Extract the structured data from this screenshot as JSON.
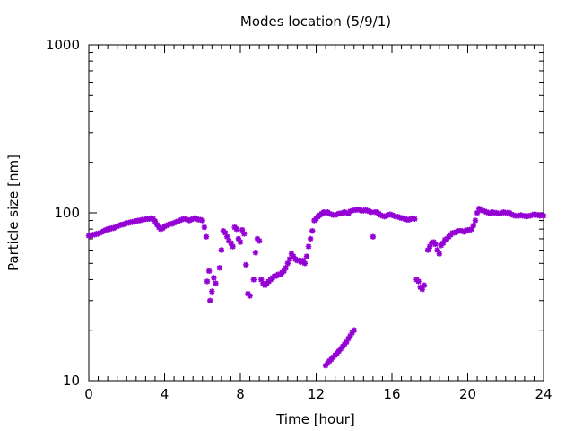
{
  "chart_data": {
    "type": "scatter",
    "title": "Modes location (5/9/1)",
    "xlabel": "Time [hour]",
    "ylabel": "Particle size [nm]",
    "xlim": [
      0,
      24
    ],
    "ylim": [
      10,
      1000
    ],
    "yscale": "log",
    "x_ticks": [
      0,
      4,
      8,
      12,
      16,
      20,
      24
    ],
    "y_ticks": [
      10,
      100,
      1000
    ],
    "x_tick_labels": [
      "0",
      "4",
      "8",
      "12",
      "16",
      "20",
      "24"
    ],
    "y_tick_labels": [
      "10",
      "100",
      "1000"
    ],
    "marker": "star",
    "color": "#9400d3",
    "series": [
      {
        "points": [
          [
            0.0,
            73
          ],
          [
            0.1,
            73
          ],
          [
            0.2,
            74
          ],
          [
            0.3,
            74
          ],
          [
            0.4,
            75
          ],
          [
            0.5,
            75
          ],
          [
            0.6,
            76
          ],
          [
            0.7,
            77
          ],
          [
            0.8,
            78
          ],
          [
            0.9,
            79
          ],
          [
            1.0,
            80
          ],
          [
            1.1,
            80
          ],
          [
            1.2,
            81
          ],
          [
            1.3,
            81
          ],
          [
            1.4,
            82
          ],
          [
            1.5,
            83
          ],
          [
            1.6,
            84
          ],
          [
            1.7,
            85
          ],
          [
            1.8,
            85
          ],
          [
            1.9,
            86
          ],
          [
            2.0,
            87
          ],
          [
            2.1,
            87
          ],
          [
            2.2,
            88
          ],
          [
            2.3,
            88
          ],
          [
            2.4,
            89
          ],
          [
            2.5,
            89
          ],
          [
            2.6,
            90
          ],
          [
            2.7,
            90
          ],
          [
            2.8,
            91
          ],
          [
            2.9,
            91
          ],
          [
            3.0,
            92
          ],
          [
            3.1,
            92
          ],
          [
            3.2,
            92
          ],
          [
            3.3,
            93
          ],
          [
            3.4,
            92
          ],
          [
            3.5,
            89
          ],
          [
            3.6,
            85
          ],
          [
            3.7,
            82
          ],
          [
            3.8,
            80
          ],
          [
            3.9,
            81
          ],
          [
            4.0,
            83
          ],
          [
            4.1,
            84
          ],
          [
            4.2,
            85
          ],
          [
            4.3,
            86
          ],
          [
            4.4,
            86
          ],
          [
            4.5,
            87
          ],
          [
            4.6,
            88
          ],
          [
            4.7,
            89
          ],
          [
            4.8,
            90
          ],
          [
            4.9,
            91
          ],
          [
            5.0,
            92
          ],
          [
            5.1,
            92
          ],
          [
            5.2,
            91
          ],
          [
            5.3,
            90
          ],
          [
            5.4,
            91
          ],
          [
            5.5,
            92
          ],
          [
            5.6,
            93
          ],
          [
            5.7,
            92
          ],
          [
            5.8,
            91
          ],
          [
            5.9,
            91
          ],
          [
            6.0,
            90
          ],
          [
            6.1,
            82
          ],
          [
            6.2,
            72
          ],
          [
            6.25,
            39
          ],
          [
            6.35,
            45
          ],
          [
            6.4,
            30
          ],
          [
            6.5,
            34
          ],
          [
            6.6,
            41
          ],
          [
            6.7,
            38
          ],
          [
            6.9,
            47
          ],
          [
            7.0,
            60
          ],
          [
            7.1,
            78
          ],
          [
            7.2,
            76
          ],
          [
            7.3,
            72
          ],
          [
            7.4,
            68
          ],
          [
            7.5,
            66
          ],
          [
            7.6,
            63
          ],
          [
            7.7,
            82
          ],
          [
            7.8,
            80
          ],
          [
            7.9,
            70
          ],
          [
            8.0,
            67
          ],
          [
            8.1,
            79
          ],
          [
            8.2,
            75
          ],
          [
            8.3,
            49
          ],
          [
            8.4,
            33
          ],
          [
            8.5,
            32
          ],
          [
            8.7,
            40
          ],
          [
            8.8,
            58
          ],
          [
            8.9,
            70
          ],
          [
            9.0,
            68
          ],
          [
            9.1,
            40
          ],
          [
            9.2,
            38
          ],
          [
            9.3,
            37
          ],
          [
            9.4,
            38
          ],
          [
            9.5,
            39
          ],
          [
            9.6,
            40
          ],
          [
            9.7,
            41
          ],
          [
            9.8,
            42
          ],
          [
            9.9,
            42
          ],
          [
            10.0,
            43
          ],
          [
            10.1,
            43
          ],
          [
            10.2,
            44
          ],
          [
            10.3,
            45
          ],
          [
            10.4,
            47
          ],
          [
            10.5,
            50
          ],
          [
            10.6,
            53
          ],
          [
            10.7,
            57
          ],
          [
            10.8,
            55
          ],
          [
            10.9,
            53
          ],
          [
            11.0,
            52
          ],
          [
            11.1,
            52
          ],
          [
            11.2,
            51
          ],
          [
            11.3,
            52
          ],
          [
            11.4,
            50
          ],
          [
            11.5,
            55
          ],
          [
            11.6,
            63
          ],
          [
            11.7,
            70
          ],
          [
            11.8,
            78
          ],
          [
            11.9,
            90
          ],
          [
            12.0,
            92
          ],
          [
            12.1,
            95
          ],
          [
            12.2,
            97
          ],
          [
            12.3,
            99
          ],
          [
            12.4,
            101
          ],
          [
            12.5,
            100
          ],
          [
            12.6,
            101
          ],
          [
            12.7,
            99
          ],
          [
            12.8,
            98
          ],
          [
            12.9,
            97
          ],
          [
            13.0,
            97
          ],
          [
            13.1,
            98
          ],
          [
            13.2,
            99
          ],
          [
            13.3,
            99
          ],
          [
            13.4,
            100
          ],
          [
            13.5,
            101
          ],
          [
            13.6,
            100
          ],
          [
            13.7,
            99
          ],
          [
            13.8,
            102
          ],
          [
            13.9,
            103
          ],
          [
            14.0,
            104
          ],
          [
            14.1,
            104
          ],
          [
            14.2,
            105
          ],
          [
            14.3,
            104
          ],
          [
            14.4,
            103
          ],
          [
            14.5,
            103
          ],
          [
            14.6,
            104
          ],
          [
            14.7,
            103
          ],
          [
            14.8,
            102
          ],
          [
            14.9,
            101
          ],
          [
            15.0,
            72
          ],
          [
            15.1,
            101
          ],
          [
            15.2,
            101
          ],
          [
            15.3,
            99
          ],
          [
            15.4,
            97
          ],
          [
            15.5,
            96
          ],
          [
            15.6,
            95
          ],
          [
            15.7,
            96
          ],
          [
            15.8,
            97
          ],
          [
            15.9,
            98
          ],
          [
            16.0,
            97
          ],
          [
            16.1,
            96
          ],
          [
            16.2,
            95
          ],
          [
            16.3,
            95
          ],
          [
            16.4,
            94
          ],
          [
            16.5,
            93
          ],
          [
            16.6,
            93
          ],
          [
            16.7,
            92
          ],
          [
            16.8,
            91
          ],
          [
            16.9,
            91
          ],
          [
            17.0,
            92
          ],
          [
            17.1,
            93
          ],
          [
            17.2,
            92
          ],
          [
            17.3,
            40
          ],
          [
            17.4,
            39
          ],
          [
            17.5,
            36
          ],
          [
            17.6,
            35
          ],
          [
            17.7,
            37
          ],
          [
            17.9,
            60
          ],
          [
            18.0,
            63
          ],
          [
            18.1,
            66
          ],
          [
            18.2,
            67
          ],
          [
            18.3,
            65
          ],
          [
            18.4,
            60
          ],
          [
            18.5,
            57
          ],
          [
            18.6,
            64
          ],
          [
            18.7,
            66
          ],
          [
            18.8,
            69
          ],
          [
            18.9,
            70
          ],
          [
            19.0,
            72
          ],
          [
            19.1,
            74
          ],
          [
            19.2,
            76
          ],
          [
            19.3,
            76
          ],
          [
            19.4,
            77
          ],
          [
            19.5,
            78
          ],
          [
            19.6,
            78
          ],
          [
            19.7,
            78
          ],
          [
            19.8,
            77
          ],
          [
            19.9,
            78
          ],
          [
            20.0,
            79
          ],
          [
            20.1,
            79
          ],
          [
            20.2,
            80
          ],
          [
            20.3,
            84
          ],
          [
            20.4,
            90
          ],
          [
            20.5,
            100
          ],
          [
            20.6,
            106
          ],
          [
            20.7,
            104
          ],
          [
            20.8,
            103
          ],
          [
            20.9,
            102
          ],
          [
            21.0,
            101
          ],
          [
            21.1,
            100
          ],
          [
            21.2,
            99
          ],
          [
            21.3,
            101
          ],
          [
            21.4,
            100
          ],
          [
            21.5,
            100
          ],
          [
            21.6,
            99
          ],
          [
            21.7,
            99
          ],
          [
            21.8,
            100
          ],
          [
            21.9,
            101
          ],
          [
            22.0,
            100
          ],
          [
            22.1,
            100
          ],
          [
            22.2,
            100
          ],
          [
            22.3,
            98
          ],
          [
            22.4,
            97
          ],
          [
            22.5,
            96
          ],
          [
            22.6,
            96
          ],
          [
            22.7,
            96
          ],
          [
            22.8,
            97
          ],
          [
            22.9,
            96
          ],
          [
            23.0,
            96
          ],
          [
            23.1,
            95
          ],
          [
            23.2,
            96
          ],
          [
            23.3,
            96
          ],
          [
            23.4,
            97
          ],
          [
            23.5,
            98
          ],
          [
            23.6,
            97
          ],
          [
            23.7,
            97
          ],
          [
            23.8,
            96
          ],
          [
            23.9,
            97
          ],
          [
            24.0,
            96
          ],
          [
            12.5,
            12.3
          ],
          [
            12.6,
            12.7
          ],
          [
            12.7,
            13.1
          ],
          [
            12.8,
            13.4
          ],
          [
            12.9,
            13.8
          ],
          [
            13.0,
            14.2
          ],
          [
            13.1,
            14.6
          ],
          [
            13.2,
            15.0
          ],
          [
            13.3,
            15.5
          ],
          [
            13.4,
            16.0
          ],
          [
            13.5,
            16.5
          ],
          [
            13.6,
            17.0
          ],
          [
            13.7,
            17.8
          ],
          [
            13.8,
            18.5
          ],
          [
            13.9,
            19.3
          ],
          [
            14.0,
            20.0
          ]
        ]
      }
    ]
  }
}
